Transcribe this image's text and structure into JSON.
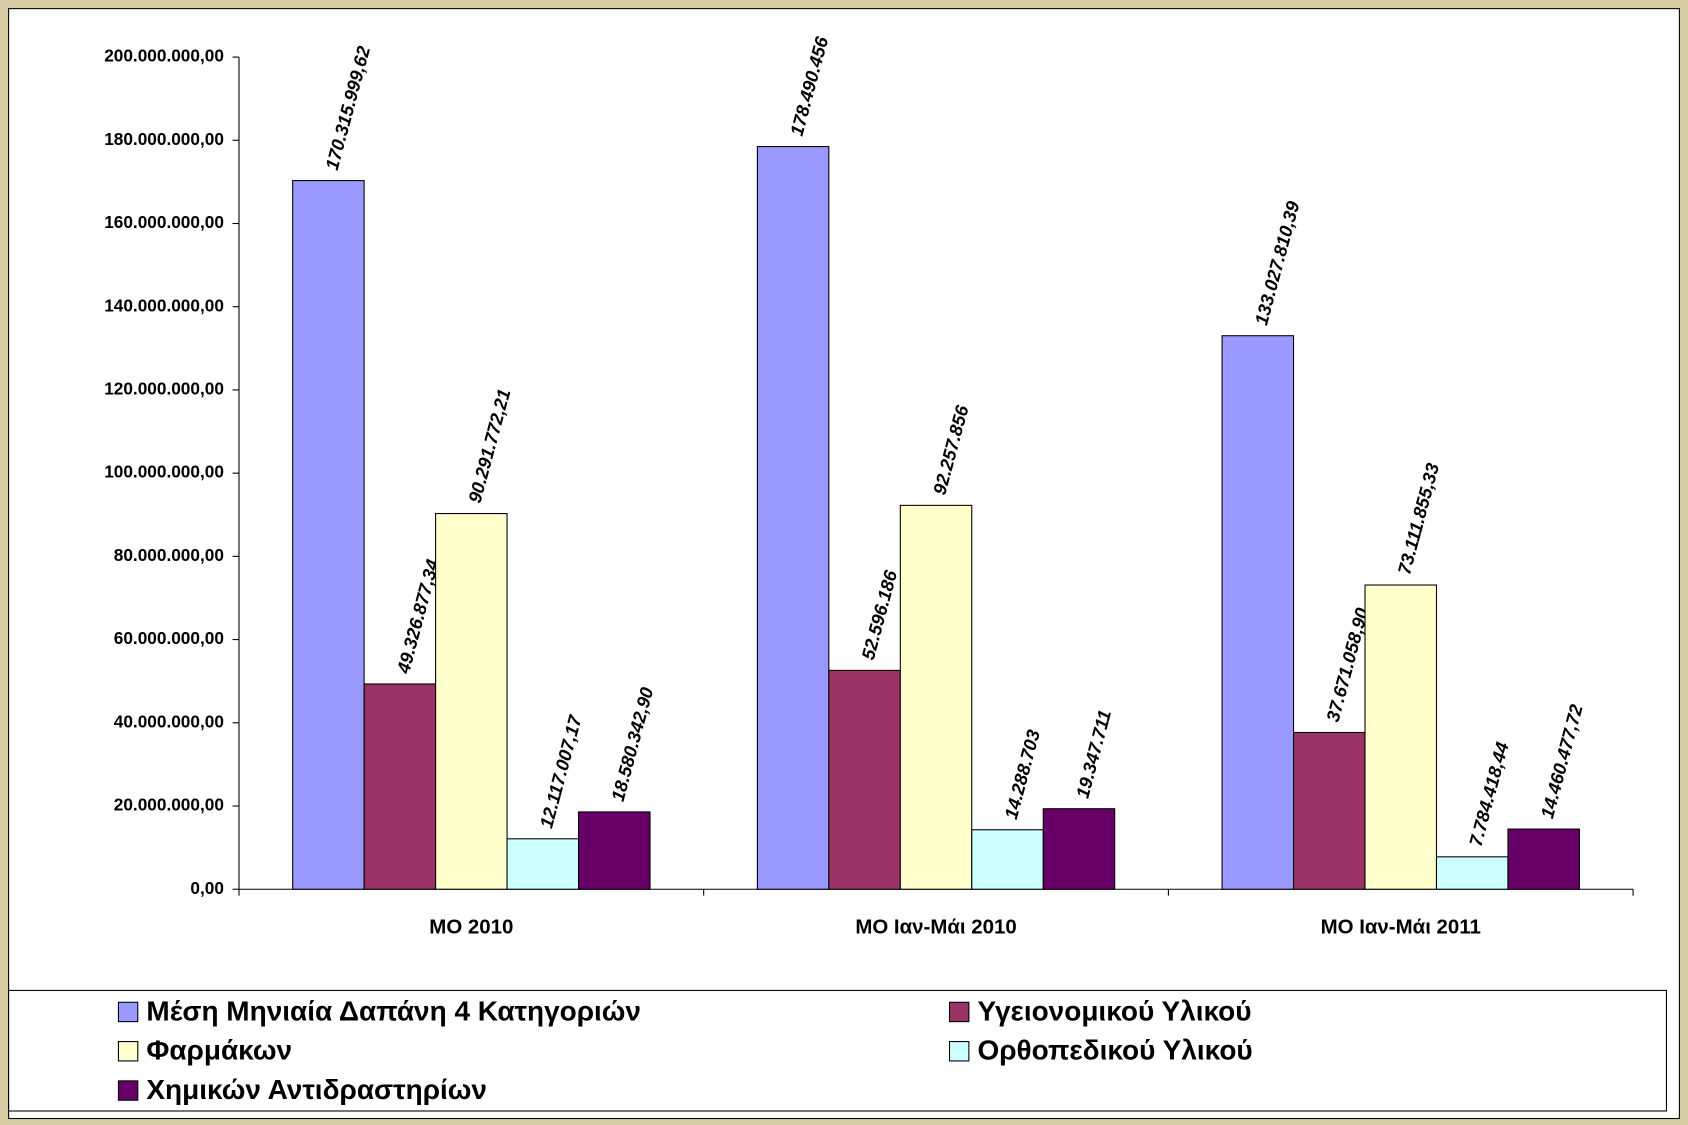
{
  "chart_data": {
    "type": "bar",
    "categories": [
      "ΜΟ 2010",
      "ΜΟ Ιαν-Μάι 2010",
      "ΜΟ Ιαν-Μάι 2011"
    ],
    "series": [
      {
        "name": "Μέση Μηνιαία Δαπάνη 4 Κατηγοριών",
        "color": "#9999ff",
        "values": [
          170315999.62,
          178490456,
          133027810.39
        ],
        "value_labels": [
          "170.315.999,62",
          "178.490.456",
          "133.027.810,39"
        ]
      },
      {
        "name": "Υγειονομικού Υλικού",
        "color": "#993366",
        "values": [
          49326877.34,
          52596186,
          37671058.9
        ],
        "value_labels": [
          "49.326.877,34",
          "52.596.186",
          "37.671.058,90"
        ]
      },
      {
        "name": "Φαρμάκων",
        "color": "#ffffcc",
        "values": [
          90291772.21,
          92257856,
          73111855.33
        ],
        "value_labels": [
          "90.291.772,21",
          "92.257.856",
          "73.111.855,33"
        ]
      },
      {
        "name": "Ορθοπεδικού Υλικού",
        "color": "#ccffff",
        "values": [
          12117007.17,
          14288703,
          7784418.44
        ],
        "value_labels": [
          "12.117.007,17",
          "14.288.703",
          "7.784.418,44"
        ]
      },
      {
        "name": "Χημικών Αντιδραστηρίων",
        "color": "#660066",
        "values": [
          18580342.9,
          19347711,
          14460477.72
        ],
        "value_labels": [
          "18.580.342,90",
          "19.347.711",
          "14.460.477,72"
        ]
      }
    ],
    "ylim": [
      0,
      200000000
    ],
    "yticks": [
      {
        "value": 0,
        "label": "0,00"
      },
      {
        "value": 20000000,
        "label": "20.000.000,00"
      },
      {
        "value": 40000000,
        "label": "40.000.000,00"
      },
      {
        "value": 60000000,
        "label": "60.000.000,00"
      },
      {
        "value": 80000000,
        "label": "80.000.000,00"
      },
      {
        "value": 100000000,
        "label": "100.000.000,00"
      },
      {
        "value": 120000000,
        "label": "120.000.000,00"
      },
      {
        "value": 140000000,
        "label": "140.000.000,00"
      },
      {
        "value": 160000000,
        "label": "160.000.000,00"
      },
      {
        "value": 180000000,
        "label": "180.000.000,00"
      },
      {
        "value": 200000000,
        "label": "200.000.000,00"
      }
    ],
    "grid": false,
    "legend": "bottom"
  }
}
